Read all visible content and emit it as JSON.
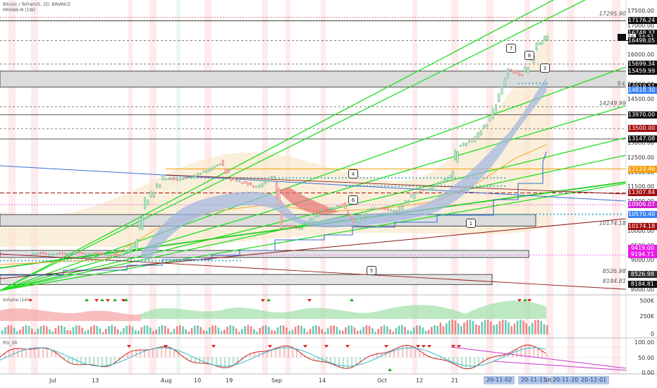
{
  "header": {
    "symbol_line": "Bitcoin / TetherUS, 1D, BINANCE",
    "indicator_line": "MRHAB-M [1W]"
  },
  "volume_pane": {
    "label": "Volume (14)",
    "ticks": [
      "500K",
      "250K",
      "0"
    ]
  },
  "rsi_pane": {
    "label": "RSI_SR",
    "ticks": [
      "100.00",
      "50.00",
      "0.00"
    ]
  },
  "price_ticks": [
    "17500.00",
    "17000.00",
    "16500.00",
    "16000.00",
    "15500.00",
    "15000.00",
    "14500.00",
    "14000.00",
    "13500.00",
    "13000.00",
    "12500.00",
    "12000.00",
    "11500.00",
    "11000.00",
    "10500.00",
    "10000.00",
    "9500.00",
    "9000.00",
    "8500.00",
    "8000.00"
  ],
  "price_tags": [
    {
      "text": "17176.24",
      "price": 17176.24,
      "bg": "#111111"
    },
    {
      "text": "16748.37",
      "price": 16748.37,
      "bg": "#111111"
    },
    {
      "text": "24:51",
      "price": 16620,
      "bg": "#111111",
      "prefix": "16"
    },
    {
      "text": "16498.05",
      "price": 16498.05,
      "bg": "#111111"
    },
    {
      "text": "15699.34",
      "price": 15699.34,
      "bg": "#111111"
    },
    {
      "text": "15459.99",
      "price": 15459.99,
      "bg": "#111111"
    },
    {
      "text": "14919.51",
      "price": 14919.51,
      "bg": "#111111"
    },
    {
      "text": "14818.30",
      "price": 14818.3,
      "bg": "#3b82f6"
    },
    {
      "text": "13970.00",
      "price": 13970.0,
      "bg": "#111111"
    },
    {
      "text": "13500.00",
      "price": 13500.0,
      "bg": "#a10e0e"
    },
    {
      "text": "13147.08",
      "price": 13147.08,
      "bg": "#111111"
    },
    {
      "text": "12123.46",
      "price": 12123.46,
      "bg": "#f59e0b"
    },
    {
      "text": "11307.84",
      "price": 11307.84,
      "bg": "#a10e0e"
    },
    {
      "text": "10906.07",
      "price": 10906.07,
      "bg": "#d21fd2"
    },
    {
      "text": "10570.40",
      "price": 10570.4,
      "bg": "#3b82f6"
    },
    {
      "text": "10174.18",
      "price": 10174.18,
      "bg": "#a10e0e"
    },
    {
      "text": "9419.00",
      "price": 9419.0,
      "bg": "#e81ce8"
    },
    {
      "text": "9194.71",
      "price": 9194.71,
      "bg": "#e81ce8"
    },
    {
      "text": "8526.98",
      "price": 8526.98,
      "bg": "#333333"
    },
    {
      "text": "8184.81",
      "price": 8184.81,
      "bg": "#111111"
    }
  ],
  "level_labels": [
    {
      "text": "17295.90",
      "price": 17295.9
    },
    {
      "text": "S-L",
      "price": 14919.51
    },
    {
      "text": "14249.99",
      "price": 14249.99
    },
    {
      "text": "10174.18",
      "price": 10174.18
    },
    {
      "text": "8526.98",
      "price": 8526.98
    },
    {
      "text": "8184.81",
      "price": 8184.81
    }
  ],
  "wave_labels": [
    "7",
    "8",
    "3",
    "4",
    "6",
    "1",
    "5"
  ],
  "x_axis": {
    "ticks": [
      "Jul",
      "13",
      "Aug",
      "10",
      "19",
      "Sep",
      "14",
      "Oct",
      "12",
      "21"
    ],
    "highlighted": [
      "20-11-02",
      "20-11-11",
      "20-11-20",
      "20-12-01"
    ],
    "small": "16"
  },
  "chart_data": {
    "type": "line",
    "title": "Bitcoin / TetherUS, 1D, BINANCE",
    "x_range": [
      "2020-06-25",
      "2020-12-05"
    ],
    "ylim": [
      8000,
      17700
    ],
    "grid": false,
    "close_series": [
      {
        "date": "2020-06-25",
        "close": 9250
      },
      {
        "date": "2020-07-01",
        "close": 9230
      },
      {
        "date": "2020-07-07",
        "close": 9250
      },
      {
        "date": "2020-07-13",
        "close": 9240
      },
      {
        "date": "2020-07-20",
        "close": 9160
      },
      {
        "date": "2020-07-24",
        "close": 9550
      },
      {
        "date": "2020-07-27",
        "close": 11000
      },
      {
        "date": "2020-08-01",
        "close": 11800
      },
      {
        "date": "2020-08-05",
        "close": 11750
      },
      {
        "date": "2020-08-10",
        "close": 11900
      },
      {
        "date": "2020-08-17",
        "close": 12300
      },
      {
        "date": "2020-08-20",
        "close": 11800
      },
      {
        "date": "2020-08-27",
        "close": 11500
      },
      {
        "date": "2020-09-01",
        "close": 11900
      },
      {
        "date": "2020-09-03",
        "close": 10200
      },
      {
        "date": "2020-09-08",
        "close": 10100
      },
      {
        "date": "2020-09-14",
        "close": 10700
      },
      {
        "date": "2020-09-20",
        "close": 10900
      },
      {
        "date": "2020-09-23",
        "close": 10300
      },
      {
        "date": "2020-09-28",
        "close": 10800
      },
      {
        "date": "2020-10-05",
        "close": 10700
      },
      {
        "date": "2020-10-10",
        "close": 11300
      },
      {
        "date": "2020-10-15",
        "close": 11500
      },
      {
        "date": "2020-10-20",
        "close": 11900
      },
      {
        "date": "2020-10-22",
        "close": 12900
      },
      {
        "date": "2020-10-26",
        "close": 13100
      },
      {
        "date": "2020-10-31",
        "close": 13800
      },
      {
        "date": "2020-11-05",
        "close": 15500
      },
      {
        "date": "2020-11-09",
        "close": 15300
      },
      {
        "date": "2020-11-13",
        "close": 16300
      },
      {
        "date": "2020-11-16",
        "close": 16700
      }
    ]
  }
}
